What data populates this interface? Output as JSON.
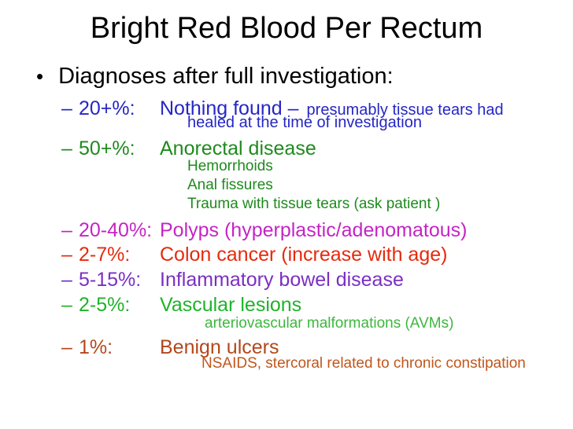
{
  "slide": {
    "title": "Bright Red Blood Per Rectum",
    "intro_bullet": "Diagnoses after full investigation:",
    "bullet_glyph": "•",
    "dash_marker": "–",
    "items": [
      {
        "pct": "20+%:",
        "label": "Nothing found –",
        "note_inline": "presumably tissue tears had",
        "note_line2": "healed at the time of investigation",
        "color": "#2526c6"
      },
      {
        "pct": "50+%:",
        "label": "Anorectal disease",
        "color": "#1e8a1e",
        "subs": [
          "Hemorrhoids",
          "Anal fissures",
          "Trauma with tissue tears (ask patient )"
        ]
      },
      {
        "pct": "20-40%:",
        "label": "Polyps (hyperplastic/adenomatous)",
        "color": "#c524c5"
      },
      {
        "pct": "2-7%:",
        "label": "Colon cancer (increase with age)",
        "color": "#e62a0d"
      },
      {
        "pct": "5-15%:",
        "label": "Inflammatory bowel disease",
        "color": "#7b2fc4"
      },
      {
        "pct": "2-5%:",
        "label": "Vascular lesions",
        "color": "#1fb32a",
        "sub_color": "#3cb83c",
        "subs": [
          "arteriovascular malformations (AVMs)"
        ]
      },
      {
        "pct": "1%:",
        "label": "Benign ulcers",
        "color": "#b3481c",
        "sub_color": "#c2561c",
        "subs": [
          "NSAIDS, stercoral related to chronic constipation"
        ]
      }
    ],
    "colors": {
      "background": "#ffffff",
      "title": "#000000",
      "intro": "#000000"
    }
  }
}
